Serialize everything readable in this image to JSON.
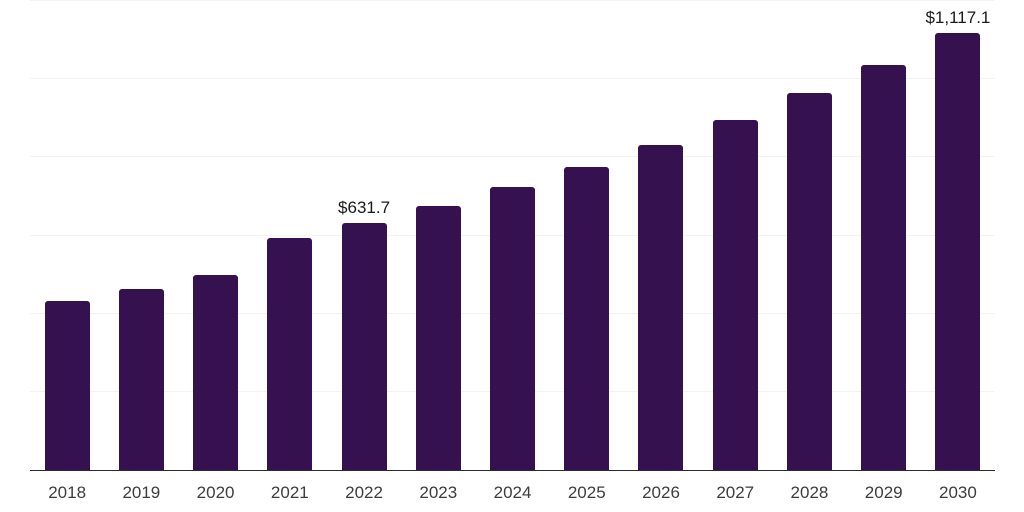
{
  "chart_data": {
    "type": "bar",
    "title": "",
    "xlabel": "",
    "ylabel": "",
    "categories": [
      "2018",
      "2019",
      "2020",
      "2021",
      "2022",
      "2023",
      "2024",
      "2025",
      "2026",
      "2027",
      "2028",
      "2029",
      "2030"
    ],
    "values": [
      433.0,
      463.8,
      498.6,
      593.6,
      631.7,
      675.8,
      724.2,
      775.1,
      832.1,
      895.7,
      963.5,
      1036.5,
      1117.1
    ],
    "data_labels": [
      {
        "category": "2022",
        "text": "$631.7"
      },
      {
        "category": "2030",
        "text": "$1,117.1"
      }
    ],
    "ylim": [
      0,
      1200
    ],
    "grid": true,
    "gridline_values": [
      200,
      400,
      600,
      800,
      1000,
      1200
    ],
    "y_axis_tick_labels_shown": false,
    "legend": "none",
    "colors": {
      "bar": "#35114F",
      "axis_line": "#2B2B2B",
      "gridline": "#F3F3F3",
      "data_label_text": "#1A1A1A",
      "tick_label_text": "#3D3D3D",
      "background": "#FFFFFF"
    }
  }
}
